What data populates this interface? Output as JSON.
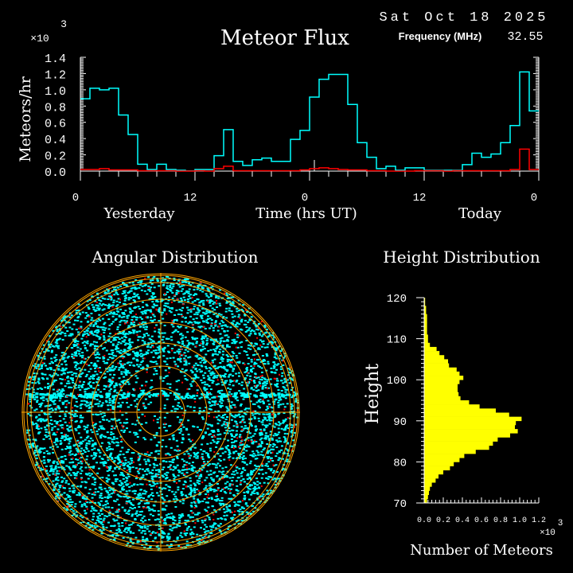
{
  "header": {
    "date": "Sat Oct 18 2025",
    "frequency_label": "Frequency (MHz)",
    "frequency_value": "32.55"
  },
  "colors": {
    "background": "#000000",
    "all_meteors": "#00ffff",
    "subset": "#ff0000",
    "grid": "#ffa500",
    "histogram": "#ffff00",
    "text": "#ffffff"
  },
  "chart_data": [
    {
      "type": "line",
      "style": "step",
      "title": "Meteor Flux",
      "ylabel": "Meteors/hr",
      "xlabel": "Time (hrs UT)",
      "y_multiplier": "×10",
      "y_multiplier_exp": "3",
      "ylim": [
        0,
        1.4
      ],
      "yticks": [
        "0.0",
        "0.2",
        "0.4",
        "0.6",
        "0.8",
        "1.0",
        "1.2",
        "1.4"
      ],
      "xticks": [
        "0",
        "12",
        "0",
        "12",
        "0"
      ],
      "day_labels": [
        "Yesterday",
        "Today"
      ],
      "x_hours": 48,
      "series": [
        {
          "color": "#00ffff",
          "values": [
            0.89,
            1.02,
            1.0,
            1.02,
            0.69,
            0.45,
            0.085,
            0.02,
            0.085,
            0.02,
            0.01,
            0.003,
            0.02,
            0.02,
            0.19,
            0.51,
            0.12,
            0.07,
            0.14,
            0.16,
            0.12,
            0.12,
            0.39,
            0.5,
            0.91,
            1.13,
            1.19,
            1.19,
            0.82,
            0.35,
            0.17,
            0.03,
            0.06,
            0.01,
            0.04,
            0.04,
            0.01,
            0.01,
            0.01,
            0.01,
            0.08,
            0.22,
            0.17,
            0.21,
            0.35,
            0.56,
            1.22,
            0.74
          ]
        },
        {
          "color": "#ff0000",
          "values": [
            0.02,
            0.02,
            0.03,
            0.015,
            0.015,
            0.015,
            0.005,
            0.005,
            0.005,
            0.005,
            0.0,
            0.0,
            0.005,
            0.0,
            0.03,
            0.06,
            0.005,
            0.005,
            0.005,
            0.005,
            0.005,
            0.005,
            0.005,
            0.015,
            0.03,
            0.04,
            0.03,
            0.02,
            0.015,
            0.015,
            0.005,
            0.005,
            0.0,
            0.0,
            0.0,
            0.005,
            0.005,
            0.005,
            0.0,
            0.005,
            0.005,
            0.005,
            0.005,
            0.005,
            0.005,
            0.02,
            0.27,
            0.02
          ]
        }
      ]
    },
    {
      "type": "scatter",
      "style": "polar-sky",
      "title": "Angular Distribution",
      "ring_count": 7
    },
    {
      "type": "bar",
      "orientation": "horizontal",
      "title": "Height Distribution",
      "ylabel": "Height",
      "xlabel": "Number of Meteors",
      "x_multiplier": "×10",
      "x_multiplier_exp": "3",
      "xlim": [
        0,
        1.2
      ],
      "ylim": [
        70,
        120
      ],
      "xticks": [
        "0.0",
        "0.2",
        "0.4",
        "0.6",
        "0.8",
        "1.0",
        "1.2"
      ],
      "yticks": [
        "70",
        "80",
        "90",
        "100",
        "110",
        "120"
      ],
      "bin_start": 70,
      "bin_width": 1,
      "values": [
        0.03,
        0.04,
        0.05,
        0.06,
        0.08,
        0.12,
        0.15,
        0.2,
        0.27,
        0.31,
        0.37,
        0.42,
        0.54,
        0.68,
        0.72,
        0.77,
        0.9,
        0.98,
        0.95,
        0.96,
        1.02,
        0.89,
        0.75,
        0.58,
        0.47,
        0.38,
        0.36,
        0.35,
        0.35,
        0.37,
        0.41,
        0.37,
        0.34,
        0.26,
        0.25,
        0.21,
        0.16,
        0.13,
        0.06,
        0.04,
        0.04,
        0.03,
        0.03,
        0.03,
        0.03,
        0.03,
        0.02,
        0.02,
        0.01,
        0.01
      ]
    }
  ]
}
